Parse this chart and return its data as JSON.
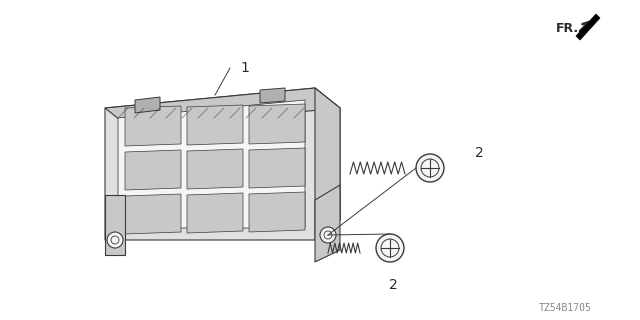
{
  "background_color": "#ffffff",
  "part_label_1": "1",
  "part_label_2": "2",
  "fr_label": "FR.",
  "diagram_code": "TZ54B1705",
  "line_color": "#3a3a3a",
  "text_color": "#2a2a2a",
  "fill_light": "#e0e0e0",
  "fill_medium": "#c8c8c8",
  "fill_dark": "#b0b0b0",
  "fill_white": "#f5f5f5"
}
